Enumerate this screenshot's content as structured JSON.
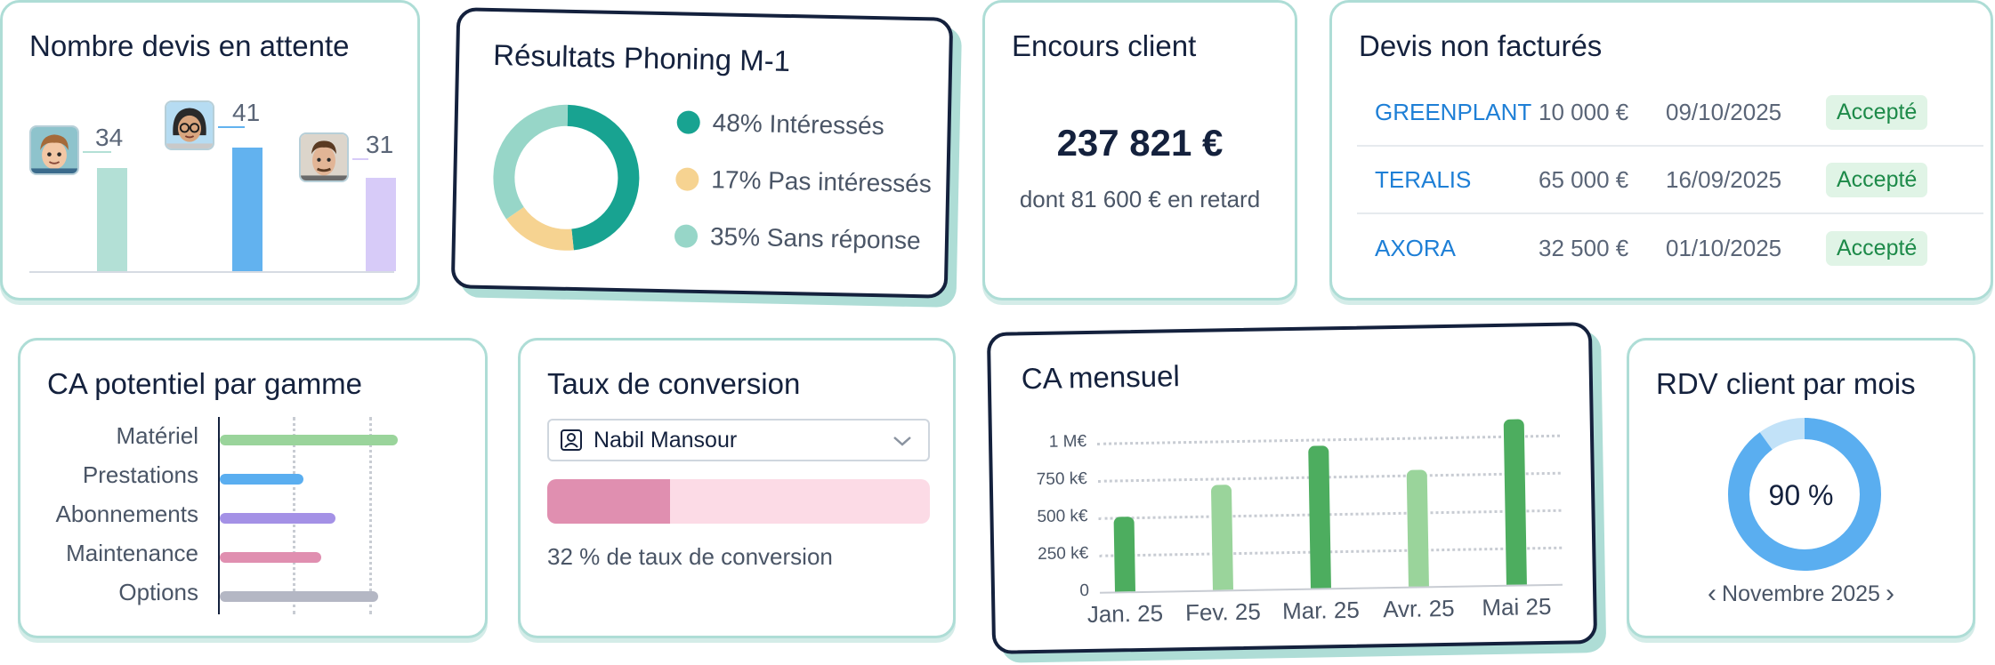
{
  "devis_attente": {
    "title": "Nombre devis en attente",
    "bars": [
      {
        "value": 34,
        "color": "#b3e0d6",
        "avatar": "boy-avatar-icon"
      },
      {
        "value": 41,
        "color": "#62b2ef",
        "avatar": "girl-glasses-avatar-icon"
      },
      {
        "value": 31,
        "color": "#d7cbf8",
        "avatar": "man-avatar-icon"
      }
    ]
  },
  "phoning": {
    "title": "Résultats Phoning M-1",
    "segments": [
      {
        "label": "48% Intéressés",
        "percent": 48,
        "color": "#18a391"
      },
      {
        "label": "17% Pas intéressés",
        "percent": 17,
        "color": "#f6d391"
      },
      {
        "label": "35% Sans réponse",
        "percent": 35,
        "color": "#97d6c8"
      }
    ]
  },
  "encours": {
    "title": "Encours client",
    "amount": "237 821 €",
    "late": "dont 81 600 € en retard"
  },
  "devis_non_factures": {
    "title": "Devis non facturés",
    "rows": [
      {
        "client": "GREENPLANT",
        "amount": "10 000 €",
        "date": "09/10/2025",
        "status": "Accepté"
      },
      {
        "client": "TERALIS",
        "amount": "65 000 €",
        "date": "16/09/2025",
        "status": "Accepté"
      },
      {
        "client": "AXORA",
        "amount": "32 500 €",
        "date": "01/10/2025",
        "status": "Accepté"
      }
    ]
  },
  "ca_potentiel": {
    "title": "CA potentiel par gamme",
    "items": [
      {
        "label": "Matériel",
        "value": 1.0,
        "color": "#9ad49b"
      },
      {
        "label": "Prestations",
        "value": 0.47,
        "color": "#5aaef0"
      },
      {
        "label": "Abonnements",
        "value": 0.65,
        "color": "#a491e6"
      },
      {
        "label": "Maintenance",
        "value": 0.57,
        "color": "#e08fb0"
      },
      {
        "label": "Options",
        "value": 0.89,
        "color": "#b4b7c4"
      }
    ]
  },
  "conversion": {
    "title": "Taux de conversion",
    "selected_user": "Nabil Mansour",
    "rate": 0.32,
    "text": "32 % de taux de conversion"
  },
  "ca_mensuel": {
    "title": "CA mensuel",
    "y_ticks": [
      "0",
      "250 k€",
      "500 k€",
      "750 k€",
      "1 M€"
    ],
    "chart_data": {
      "type": "bar",
      "categories": [
        "Jan. 25",
        "Fev. 25",
        "Mar. 25",
        "Avr. 25",
        "Mai 25"
      ],
      "values": [
        500000,
        700000,
        950000,
        780000,
        1110000
      ],
      "colors": [
        "#4dad5f",
        "#9ad49b",
        "#4dad5f",
        "#9ad49b",
        "#4dad5f"
      ],
      "ylim": [
        0,
        1150000
      ]
    }
  },
  "rdv": {
    "title": "RDV client par mois",
    "percent": 90,
    "label": "90 %",
    "month": "Novembre 2025",
    "prev": "‹",
    "next": "›"
  }
}
